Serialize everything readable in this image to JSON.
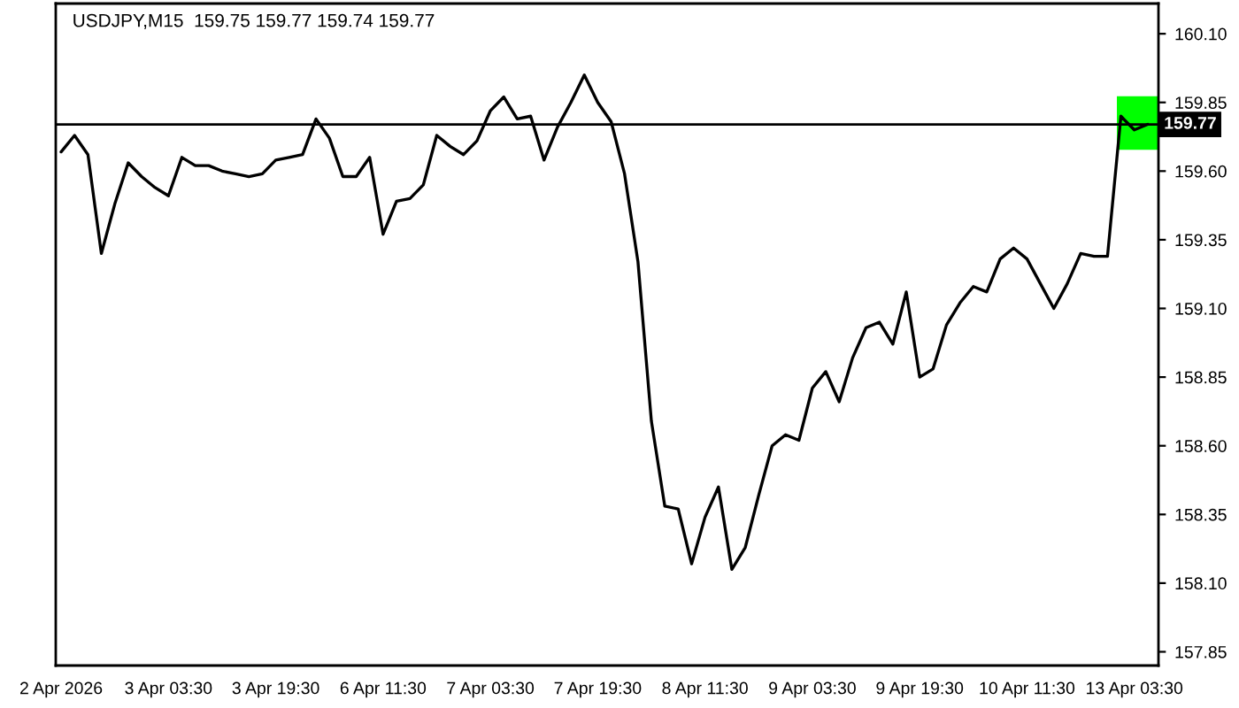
{
  "chart_data": {
    "type": "line",
    "title": "USDJPY,M15  159.75 159.77 159.74 159.77",
    "categories": [
      "2 Apr 2026",
      null,
      null,
      null,
      null,
      null,
      null,
      null,
      "3 Apr 03:30",
      null,
      null,
      null,
      null,
      null,
      null,
      null,
      "3 Apr 19:30",
      null,
      null,
      null,
      null,
      null,
      null,
      null,
      "6 Apr 11:30",
      null,
      null,
      null,
      null,
      null,
      null,
      null,
      "7 Apr 03:30",
      null,
      null,
      null,
      null,
      null,
      null,
      null,
      "7 Apr 19:30",
      null,
      null,
      null,
      null,
      null,
      null,
      null,
      "8 Apr 11:30",
      null,
      null,
      null,
      null,
      null,
      null,
      null,
      "9 Apr 03:30",
      null,
      null,
      null,
      null,
      null,
      null,
      null,
      "9 Apr 19:30",
      null,
      null,
      null,
      null,
      null,
      null,
      null,
      "10 Apr 11:30",
      null,
      null,
      null,
      null,
      null,
      null,
      null,
      "13 Apr 03:30",
      null
    ],
    "ylim": [
      157.8,
      160.21
    ],
    "yticks": [
      {
        "value": 157.85,
        "label": "157.85"
      },
      {
        "value": 158.1,
        "label": "158.10"
      },
      {
        "value": 158.35,
        "label": "158.35"
      },
      {
        "value": 158.6,
        "label": "158.60"
      },
      {
        "value": 158.85,
        "label": "158.85"
      },
      {
        "value": 159.1,
        "label": "159.10"
      },
      {
        "value": 159.35,
        "label": "159.35"
      },
      {
        "value": 159.6,
        "label": "159.60"
      },
      {
        "value": 159.85,
        "label": "159.85"
      },
      {
        "value": 160.1,
        "label": "160.10"
      }
    ],
    "marker": "none",
    "line_style": "solid",
    "ref_lines": [
      {
        "axis": "y",
        "value": 159.77,
        "label": "159.77",
        "color": "#000000"
      }
    ],
    "series": [
      {
        "color": "#000000",
        "values": [
          159.67,
          159.73,
          159.66,
          159.3,
          159.48,
          159.63,
          159.58,
          159.54,
          159.51,
          159.65,
          159.62,
          159.62,
          159.6,
          159.59,
          159.58,
          159.59,
          159.64,
          159.65,
          159.66,
          159.79,
          159.72,
          159.58,
          159.58,
          159.65,
          159.37,
          159.49,
          159.5,
          159.55,
          159.73,
          159.69,
          159.66,
          159.71,
          159.82,
          159.87,
          159.79,
          159.8,
          159.64,
          159.76,
          159.85,
          159.95,
          159.85,
          159.78,
          159.59,
          159.27,
          158.69,
          158.38,
          158.37,
          158.17,
          158.34,
          158.45,
          158.15,
          158.23,
          158.42,
          158.6,
          158.64,
          158.62,
          158.81,
          158.87,
          158.76,
          158.92,
          159.03,
          159.05,
          158.97,
          159.16,
          158.85,
          158.88,
          159.04,
          159.12,
          159.18,
          159.16,
          159.28,
          159.32,
          159.28,
          159.19,
          159.1,
          159.19,
          159.3,
          159.29,
          159.29,
          159.8,
          159.75,
          159.77
        ]
      }
    ]
  }
}
